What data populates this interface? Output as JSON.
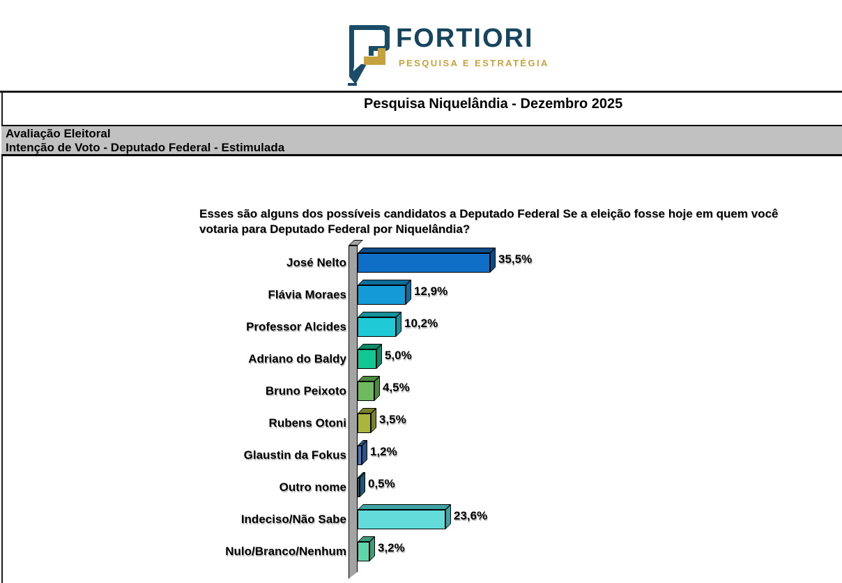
{
  "logo": {
    "name": "FORTIORI",
    "tagline": "PESQUISA E ESTRATÉGIA",
    "navy": "#1B4D68",
    "gold": "#C6A23F"
  },
  "report": {
    "title": "Pesquisa Niquelândia - Dezembro 2025",
    "section_line1": "Avaliação Eleitoral",
    "section_line2": "Intenção de Voto - Deputado Federal - Estimulada"
  },
  "chart_data": {
    "type": "bar",
    "orientation": "horizontal",
    "title": "Esses são alguns dos possíveis candidatos a Deputado Federal Se a eleição fosse hoje em quem você votaria para Deputado Federal por Niquelândia?",
    "axis_color": "#A3A3A3",
    "legend": "none",
    "grid": false,
    "xlim": [
      0,
      40
    ],
    "categories": [
      "José Nelto",
      "Flávia Moraes",
      "Professor Alcides",
      "Adriano do Baldy",
      "Bruno Peixoto",
      "Rubens Otoni",
      "Glaustin da Fokus",
      "Outro nome",
      "Indeciso/Não Sabe",
      "Nulo/Branco/Nenhum"
    ],
    "values": [
      35.5,
      12.9,
      10.2,
      5.0,
      4.5,
      3.5,
      1.2,
      0.5,
      23.6,
      3.2
    ],
    "value_labels": [
      "35,5%",
      "12,9%",
      "10,2%",
      "5,0%",
      "4,5%",
      "3,5%",
      "1,2%",
      "0,5%",
      "23,6%",
      "3,2%"
    ],
    "bar_colors": [
      "#0F6FC6",
      "#149BD7",
      "#1FC9D6",
      "#13C795",
      "#6FBA5E",
      "#ABB43B",
      "#4379BE",
      "#2B80AB",
      "#63DBDB",
      "#5FD6AB"
    ],
    "bar_shades": [
      "#094A88",
      "#0D6E9B",
      "#14929C",
      "#0C8A68",
      "#4C8A41",
      "#7A8128",
      "#2E5588",
      "#1C5876",
      "#3FA3A3",
      "#3E9C7C"
    ]
  }
}
